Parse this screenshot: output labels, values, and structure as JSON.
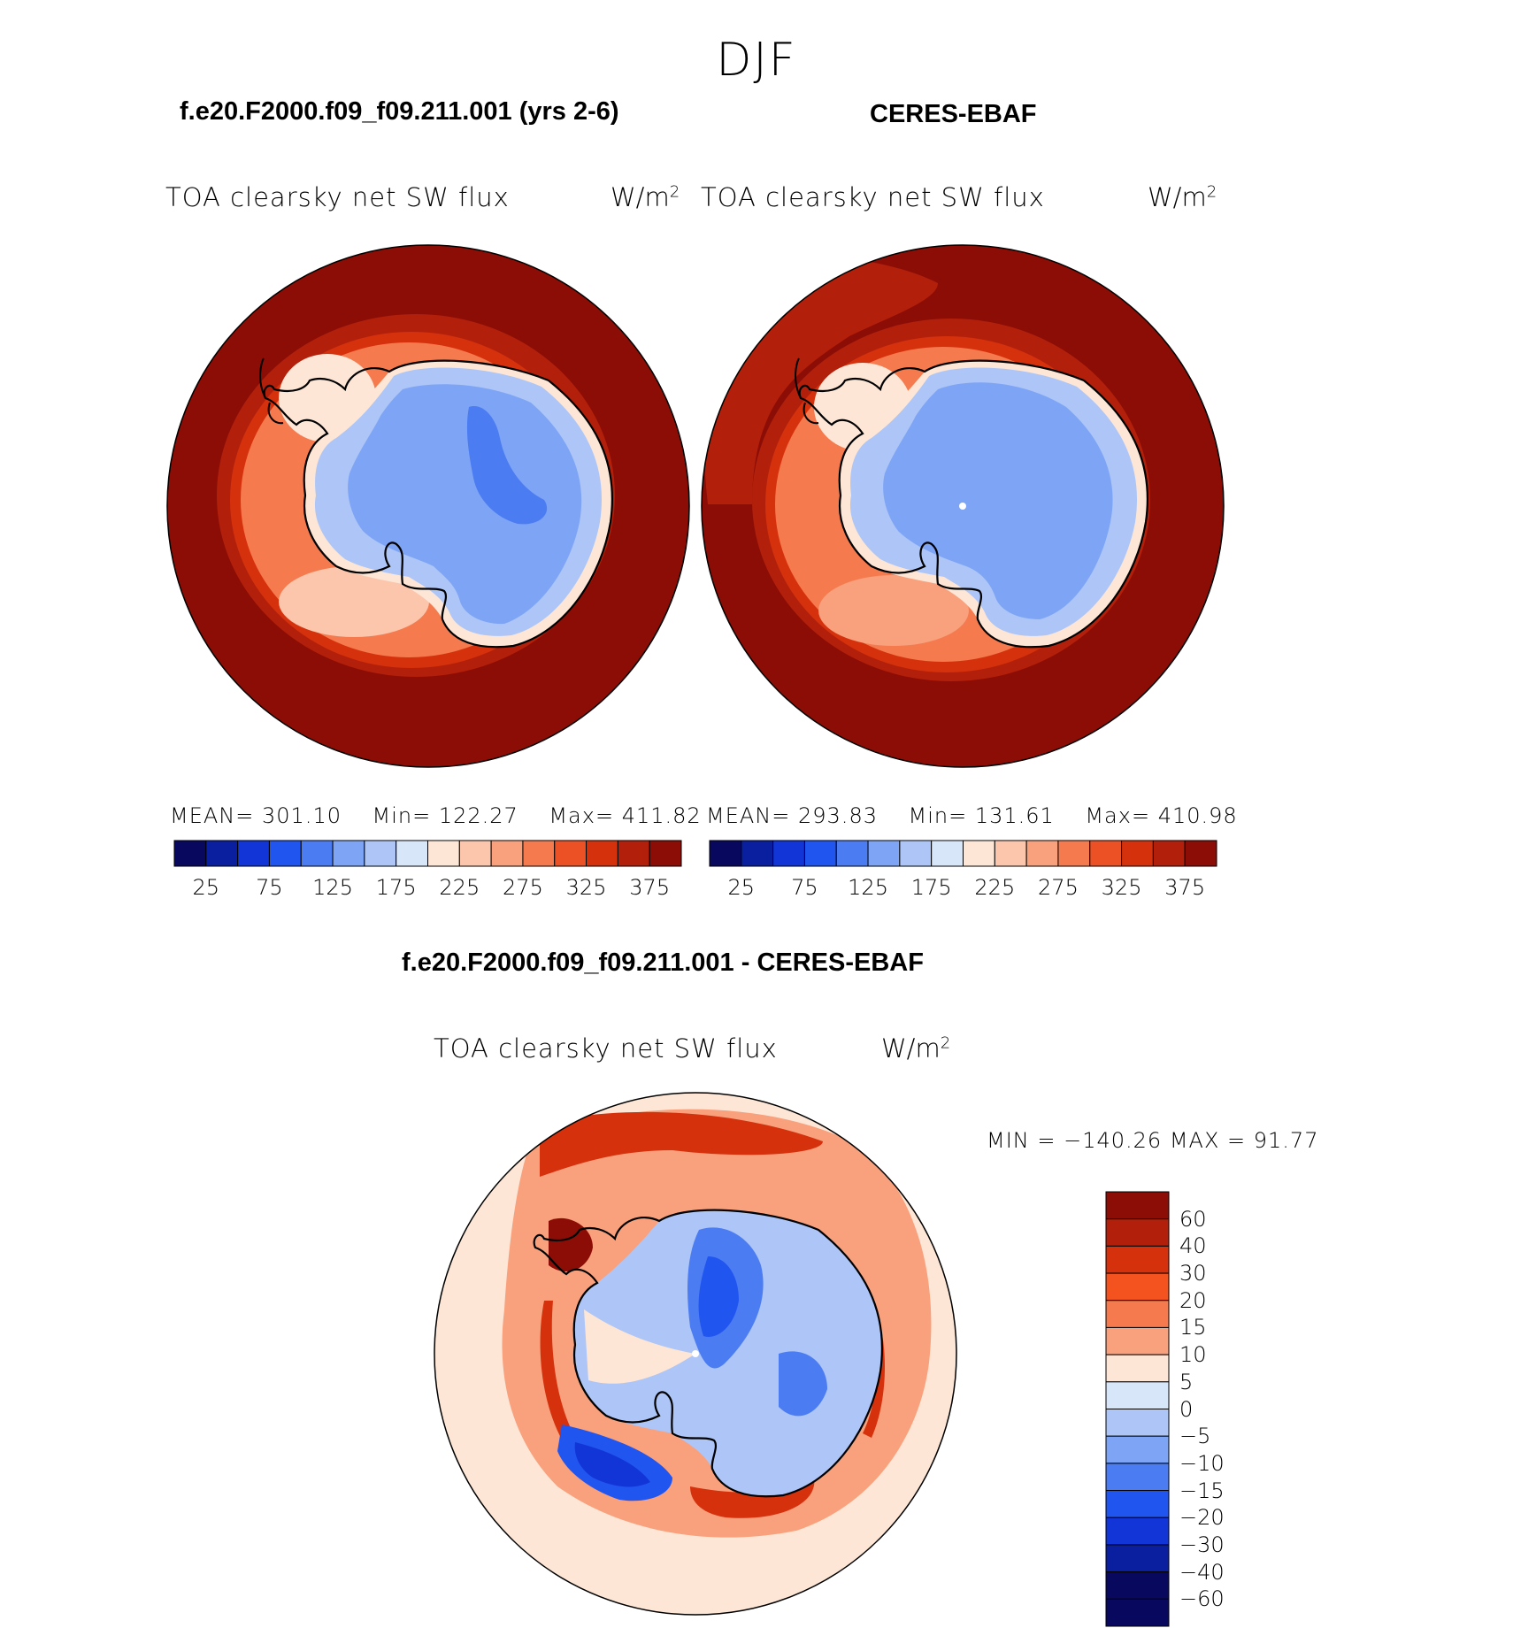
{
  "season": "DJF",
  "panels": {
    "model": {
      "case": "f.e20.F2000.f09_f09.211.001 (yrs 2-6)",
      "variable": "TOA clearsky net SW flux",
      "units": "W/m",
      "units_sup": "2",
      "mean_label": "MEAN=",
      "mean": "301.10",
      "min_label": "Min=",
      "min": "122.27",
      "max_label": "Max=",
      "max": "411.82"
    },
    "obs": {
      "case": "CERES-EBAF",
      "variable": "TOA clearsky net SW flux",
      "units": "W/m",
      "units_sup": "2",
      "mean_label": "MEAN=",
      "mean": "293.83",
      "min_label": "Min=",
      "min": "131.61",
      "max_label": "Max=",
      "max": "410.98"
    },
    "diff": {
      "case": "f.e20.F2000.f09_f09.211.001 - CERES-EBAF",
      "variable": "TOA clearsky net SW flux",
      "units": "W/m",
      "units_sup": "2",
      "minmax": "MIN = −140.26 MAX =  91.77"
    }
  },
  "colorbars": {
    "abs": {
      "colors": [
        "#08085e",
        "#0a1fa0",
        "#1235d8",
        "#2155f0",
        "#4b7cf2",
        "#7ea4f5",
        "#adc6f7",
        "#d8e6fa",
        "#fde6d6",
        "#fcc6ac",
        "#f9a07c",
        "#f57a4e",
        "#ec5126",
        "#d5310d",
        "#b2200b",
        "#8c0d06"
      ],
      "tick_labels": [
        "25",
        "75",
        "125",
        "175",
        "225",
        "275",
        "325",
        "375"
      ]
    },
    "diff": {
      "colors": [
        "#8c0d06",
        "#b2200b",
        "#d5310d",
        "#f4521e",
        "#f57a4e",
        "#f9a07c",
        "#fde6d6",
        "#d8e6fa",
        "#adc6f7",
        "#7ea4f5",
        "#4b7cf2",
        "#2155f0",
        "#1235d8",
        "#0a1fa0",
        "#08085e"
      ],
      "tick_labels": [
        "60",
        "40",
        "30",
        "20",
        "15",
        "10",
        "5",
        "0",
        "−5",
        "−10",
        "−15",
        "−20",
        "−30",
        "−40",
        "−60"
      ]
    }
  },
  "map_colors": {
    "ocean_high": "#8c0d06",
    "ocean_mid": "#b2200b",
    "ring_1": "#d5310d",
    "ring_2": "#f57a4e",
    "ring_3": "#f9a07c",
    "ring_4": "#fde6d6",
    "ice_1": "#adc6f7",
    "ice_2": "#7ea4f5",
    "ice_3": "#4b7cf2",
    "diff_bg": "#fde6d6",
    "diff_warm": "#f9a07c",
    "diff_hot": "#d5310d",
    "diff_cold": "#2155f0",
    "diff_cool": "#adc6f7"
  }
}
